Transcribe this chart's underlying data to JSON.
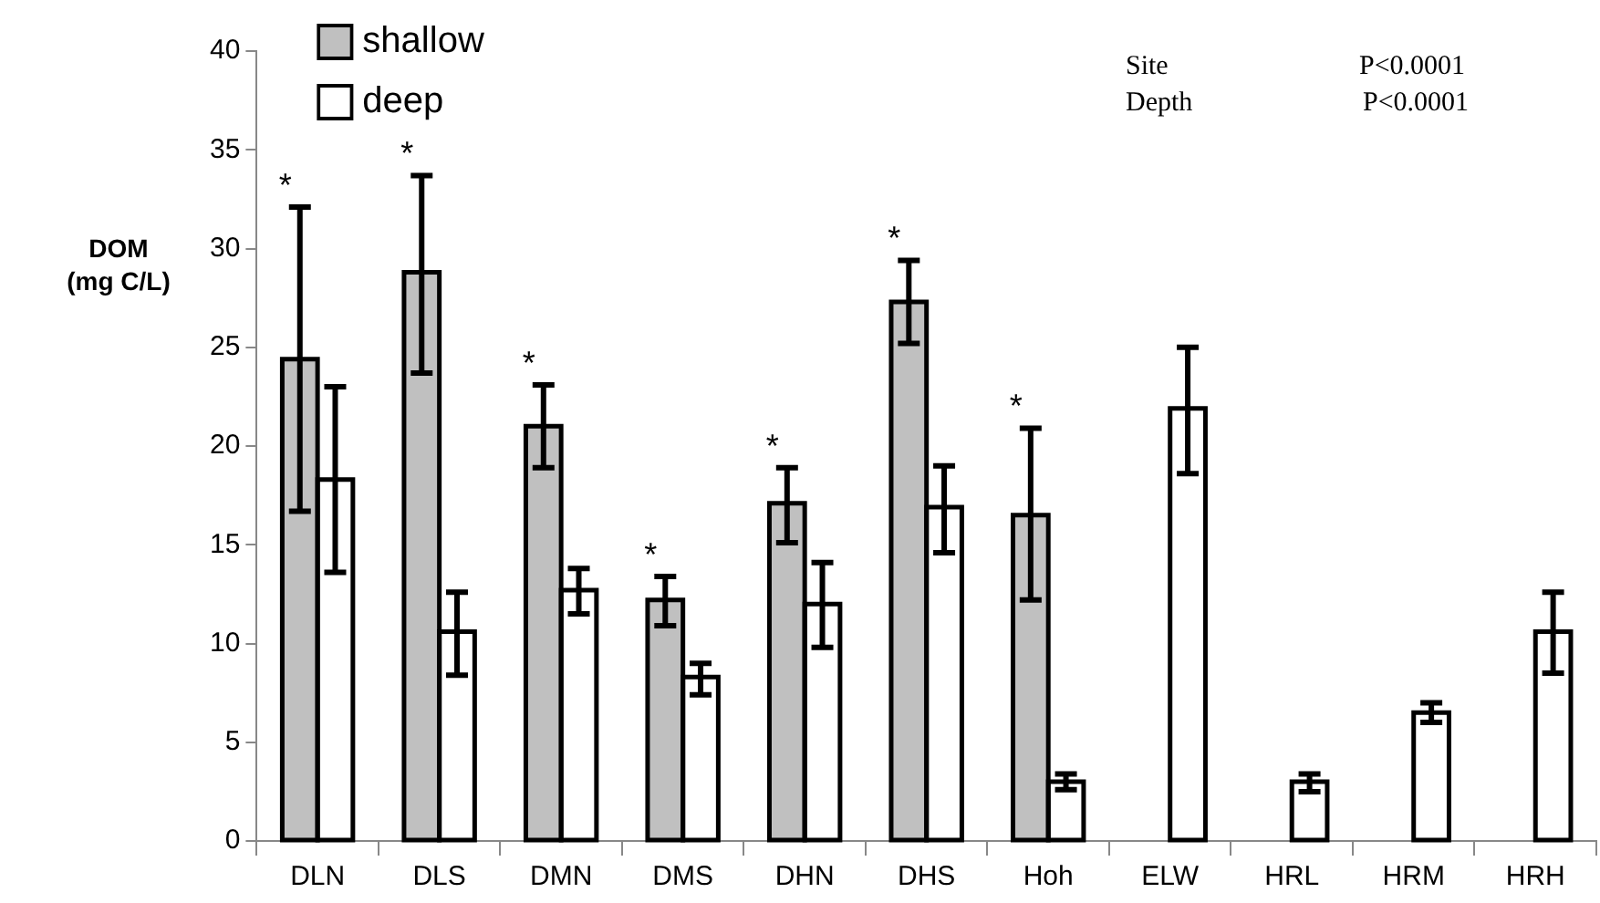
{
  "chart_data": {
    "type": "bar",
    "ylabel": "DOM\n(mg C/L)",
    "categories": [
      "DLN",
      "DLS",
      "DMN",
      "DMS",
      "DHN",
      "DHS",
      "Hoh",
      "ELW",
      "HRL",
      "HRM",
      "HRH"
    ],
    "series": [
      {
        "name": "shallow",
        "color": "#c0c0c0",
        "values": [
          24.4,
          28.8,
          21.0,
          12.2,
          17.1,
          27.3,
          16.5,
          null,
          null,
          null,
          null
        ],
        "errors": [
          [
            16.7,
            32.1
          ],
          [
            23.7,
            33.7
          ],
          [
            18.9,
            23.1
          ],
          [
            10.9,
            13.4
          ],
          [
            15.1,
            18.9
          ],
          [
            25.2,
            29.4
          ],
          [
            12.2,
            20.9
          ],
          null,
          null,
          null,
          null
        ]
      },
      {
        "name": "deep",
        "color": "#ffffff",
        "values": [
          18.3,
          10.6,
          12.7,
          8.3,
          12.0,
          16.9,
          3.0,
          21.9,
          3.0,
          6.5,
          10.6
        ],
        "errors": [
          [
            13.6,
            23.0
          ],
          [
            8.4,
            12.6
          ],
          [
            11.5,
            13.8
          ],
          [
            7.4,
            9.0
          ],
          [
            9.8,
            14.1
          ],
          [
            14.6,
            19.0
          ],
          [
            2.6,
            3.4
          ],
          [
            18.6,
            25.0
          ],
          [
            2.5,
            3.4
          ],
          [
            6.0,
            7.0
          ],
          [
            8.5,
            12.6
          ]
        ]
      }
    ],
    "ylim": [
      0,
      40
    ],
    "yticks": [
      0,
      5,
      10,
      15,
      20,
      25,
      30,
      35,
      40
    ],
    "grid": false,
    "legend": "top left",
    "annotations": [
      {
        "text": "*",
        "x": "DLN",
        "y": 32.1
      },
      {
        "text": "*",
        "x": "DLS",
        "y": 33.7
      },
      {
        "text": "*",
        "x": "DMN",
        "y": 23.1
      },
      {
        "text": "*",
        "x": "DMS",
        "y": 13.4
      },
      {
        "text": "*",
        "x": "DHN",
        "y": 18.9
      },
      {
        "text": "*",
        "x": "DHS",
        "y": 29.4
      },
      {
        "text": "*",
        "x": "Hoh",
        "y": 20.9
      },
      "Site\tP<0.0001",
      "Depth\tP<0.0001"
    ]
  }
}
